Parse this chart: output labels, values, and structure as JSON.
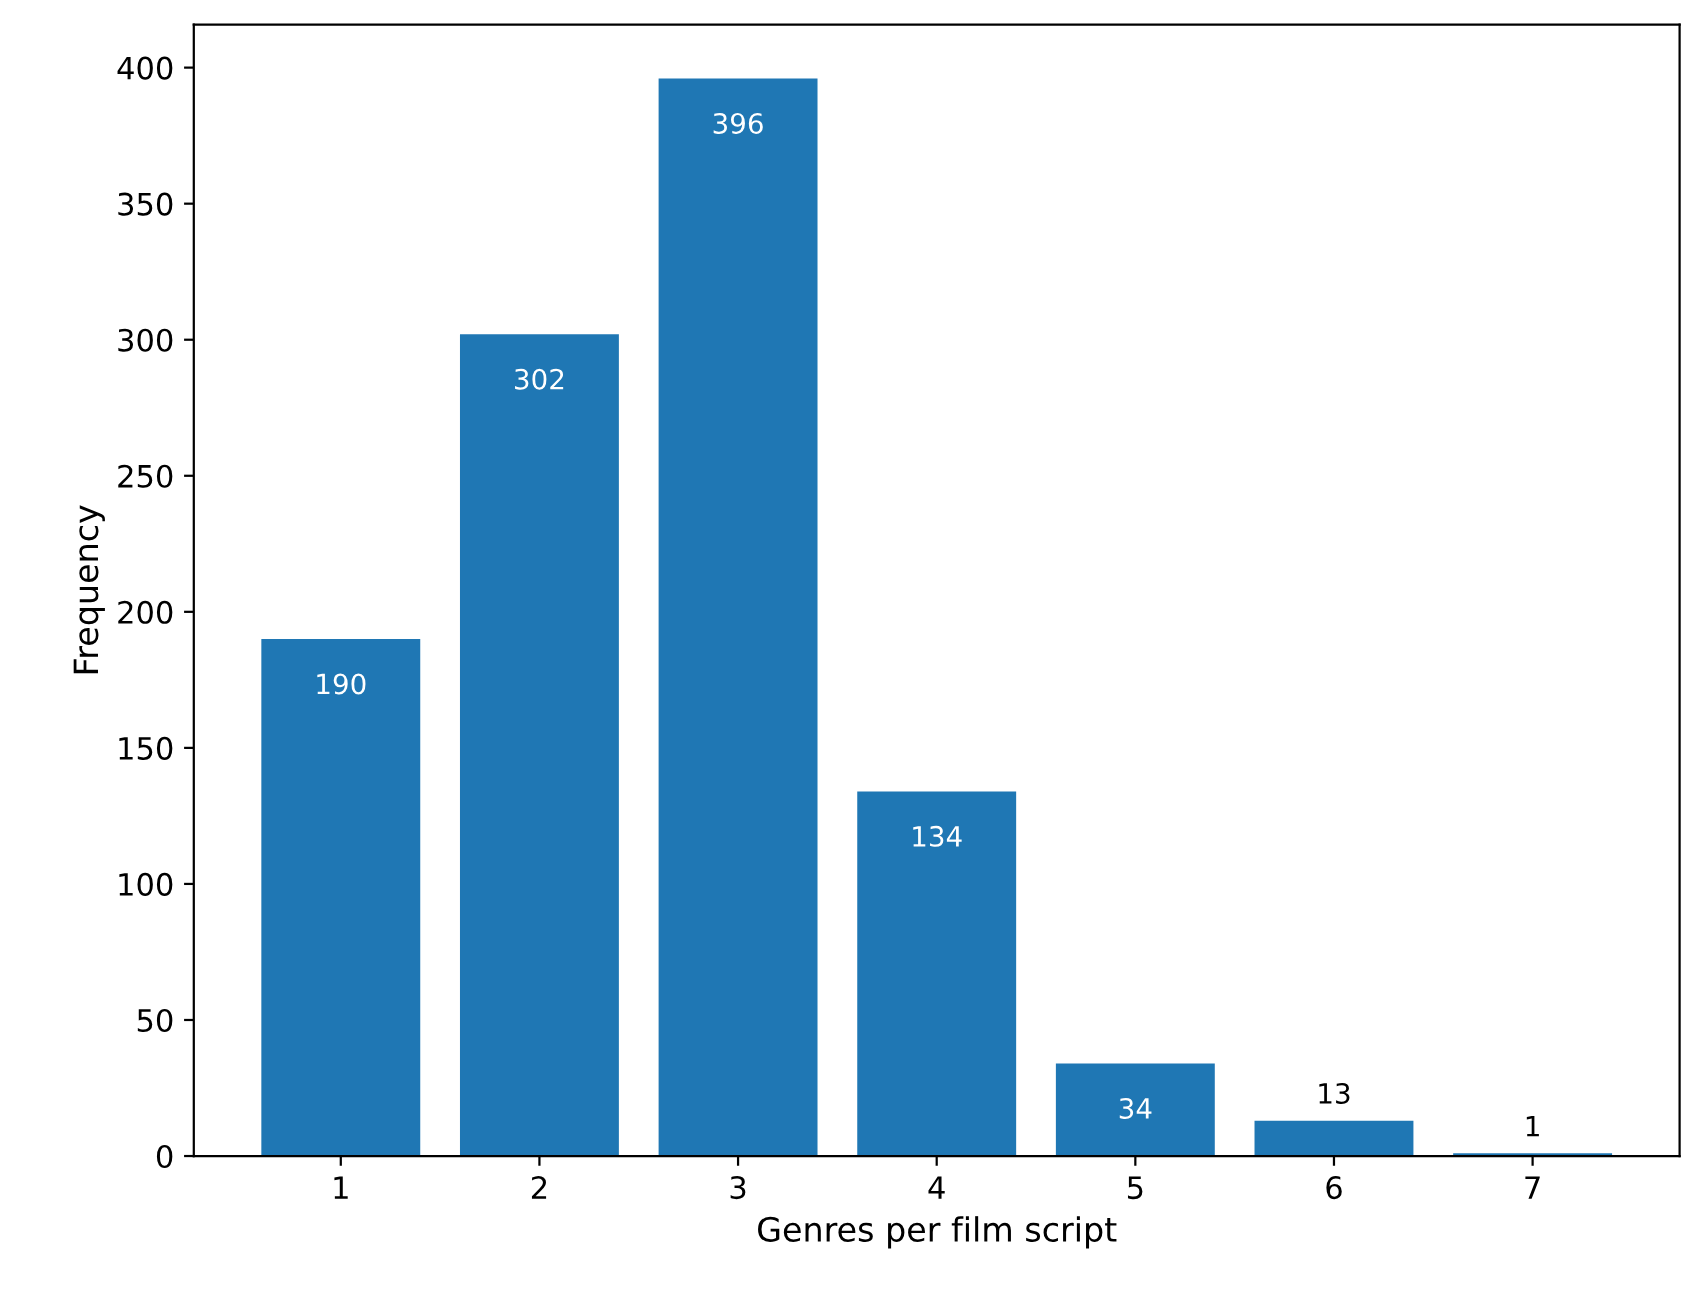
{
  "chart_data": {
    "type": "bar",
    "xlabel": "Genres per film script",
    "ylabel": "Frequency",
    "categories": [
      "1",
      "2",
      "3",
      "4",
      "5",
      "6",
      "7"
    ],
    "values": [
      190,
      302,
      396,
      134,
      34,
      13,
      1
    ],
    "color": "#1f77b4",
    "ylim": [
      0,
      415.8
    ],
    "yticks": [
      0,
      50,
      100,
      150,
      200,
      250,
      300,
      350,
      400
    ],
    "data_labels": true,
    "grid": false
  }
}
